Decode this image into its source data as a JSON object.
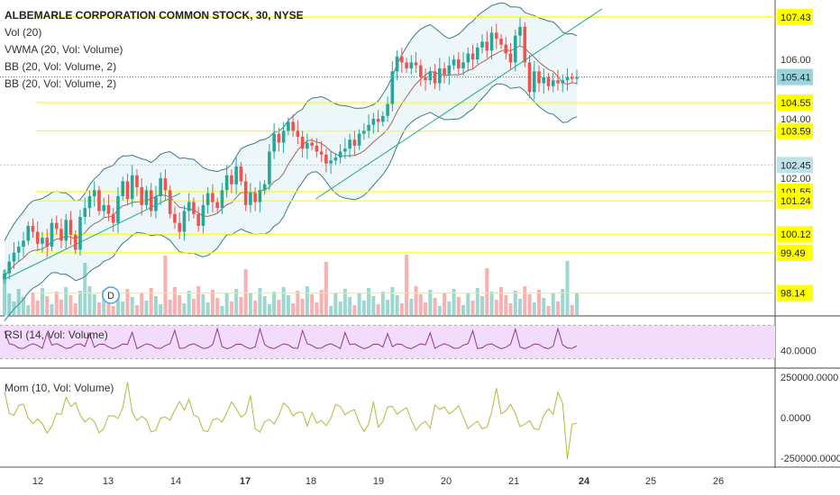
{
  "legend": {
    "title": "ALBEMARLE CORPORATION COMMON STOCK, 30, NYSE",
    "vol": "Vol (20)",
    "vwma": "VWMA (20, Vol: Volume)",
    "bb1": "BB (20, Vol: Volume, 2)",
    "bb2": "BB (20, Vol: Volume, 2)"
  },
  "rsi_title": "RSI (14, Vol: Volume)",
  "mom_title": "Mom (10, Vol: Volume)",
  "dividend_marker": "D",
  "colors": {
    "up": "#26a69a",
    "down": "#ef5350",
    "level_line": "#ffff00",
    "level_box": "#ffff00",
    "last_price_box": "#9ad4df",
    "rsi_band": "#f3dcfb",
    "rsi_line": "#8e3b8e",
    "mom_line": "#b5b83d",
    "bb_line": "#3b7a8c",
    "vwma_line": "#9b6b5c",
    "trend_line": "#2aa88f"
  },
  "chart_data": [
    {
      "type": "candlestick",
      "title": "ALBEMARLE CORPORATION COMMON STOCK, 30, NYSE",
      "x_tick_labels": [
        "12",
        "13",
        "14",
        "17",
        "18",
        "19",
        "20",
        "21",
        "24",
        "25",
        "26"
      ],
      "y_tick_labels": [
        "106.00",
        "104.00",
        "102.00"
      ],
      "ylim": [
        97.4,
        107.85
      ],
      "price_levels": [
        107.43,
        104.55,
        103.59,
        101.55,
        101.24,
        100.12,
        99.49,
        98.14
      ],
      "last_price": 105.41,
      "highlighted_level": 102.45,
      "closes_approx": [
        98.8,
        99.2,
        99.5,
        99.7,
        99.9,
        100.4,
        100.2,
        99.8,
        100.0,
        99.7,
        100.5,
        100.3,
        99.9,
        100.6,
        100.1,
        99.6,
        100.7,
        101.0,
        101.4,
        101.6,
        100.9,
        101.1,
        100.8,
        100.5,
        101.4,
        101.9,
        101.3,
        102.1,
        101.7,
        101.1,
        101.6,
        100.9,
        101.4,
        102.0,
        101.6,
        100.8,
        100.5,
        100.2,
        100.9,
        101.2,
        100.8,
        100.4,
        101.1,
        101.5,
        101.2,
        101.0,
        101.6,
        102.1,
        101.8,
        102.4,
        101.9,
        101.1,
        101.5,
        101.2,
        101.6,
        101.8,
        102.9,
        103.5,
        103.2,
        103.6,
        103.9,
        103.6,
        103.4,
        103.0,
        103.2,
        103.1,
        102.9,
        102.8,
        102.5,
        102.6,
        102.7,
        102.9,
        103.0,
        103.3,
        103.1,
        103.5,
        103.6,
        103.8,
        104.0,
        103.9,
        104.1,
        104.5,
        105.6,
        106.1,
        105.9,
        105.7,
        105.9,
        105.8,
        105.4,
        105.3,
        105.6,
        105.2,
        105.7,
        105.5,
        105.8,
        106.0,
        105.7,
        105.9,
        106.2,
        106.0,
        106.4,
        106.6,
        106.3,
        106.9,
        106.7,
        106.5,
        106.2,
        105.9,
        106.8,
        107.1,
        105.9,
        104.9,
        105.6,
        105.2,
        105.4,
        105.1,
        105.3,
        105.2,
        105.3,
        105.4,
        105.35,
        105.41
      ],
      "volume_pane": true
    },
    {
      "type": "line",
      "title": "RSI (14, Vol: Volume)",
      "y_tick_labels": [
        "40.0000"
      ],
      "ylim": [
        20,
        80
      ],
      "band": [
        30,
        70
      ]
    },
    {
      "type": "line",
      "title": "Mom (10, Vol: Volume)",
      "y_tick_labels": [
        "250000.0000",
        "0.0000",
        "-250000.0000"
      ],
      "ylim": [
        -300000,
        300000
      ]
    }
  ]
}
